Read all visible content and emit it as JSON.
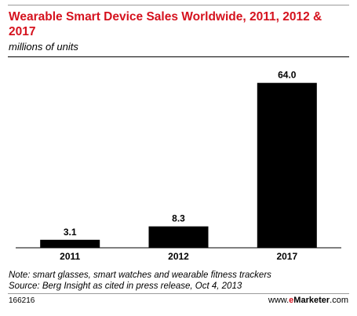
{
  "title": "Wearable Smart Device Sales Worldwide, 2011, 2012 & 2017",
  "subtitle": "millions of units",
  "note": "Note: smart glasses, smart watches and wearable fitness trackers",
  "source": "Source: Berg Insight as cited in press release, Oct 4, 2013",
  "chart_id": "166216",
  "brand": {
    "prefix": "www.",
    "accent": "e",
    "name": "Marketer",
    "suffix": ".com"
  },
  "colors": {
    "title": "#d5121e",
    "bars": "#000000",
    "brand_accent": "#d5121e"
  },
  "chart_data": {
    "type": "bar",
    "title": "Wearable Smart Device Sales Worldwide, 2011, 2012 & 2017",
    "subtitle": "millions of units",
    "categories": [
      "2011",
      "2012",
      "2017"
    ],
    "values": [
      3.1,
      8.3,
      64.0
    ],
    "value_labels": [
      "3.1",
      "8.3",
      "64.0"
    ],
    "ylim": [
      0,
      70
    ],
    "grid": false,
    "legend": "none"
  }
}
